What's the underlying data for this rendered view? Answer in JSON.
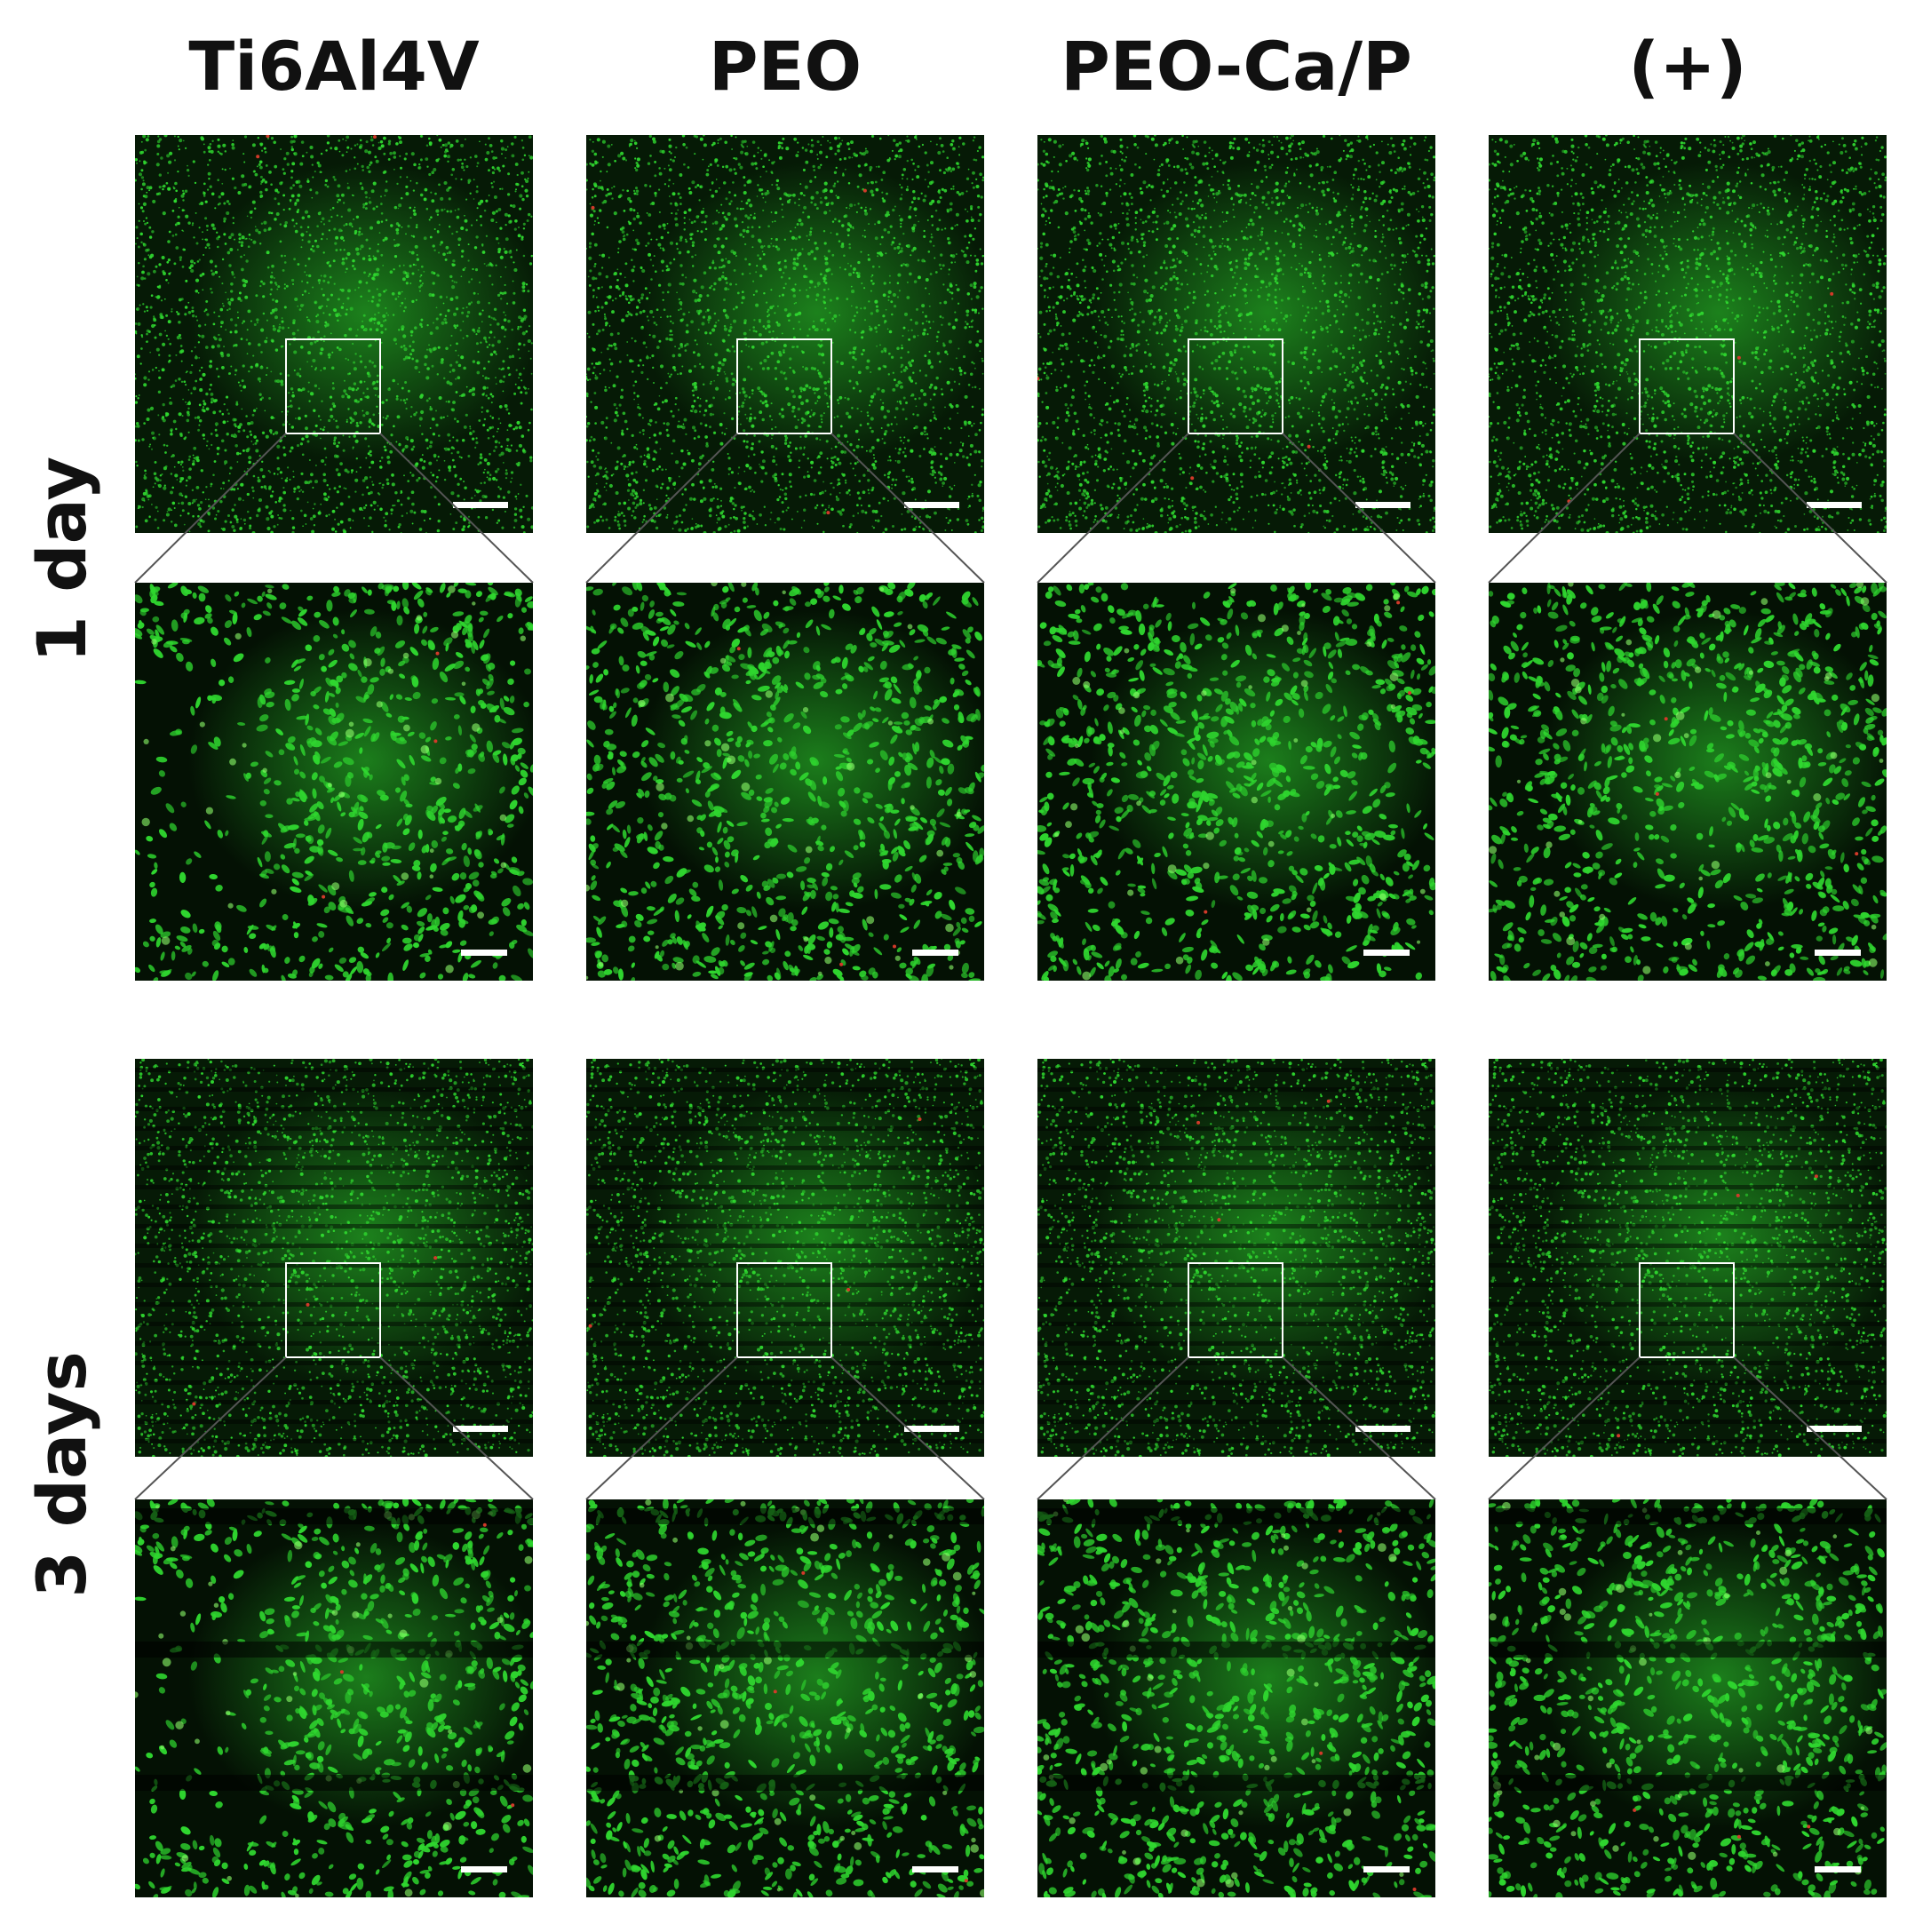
{
  "figure": {
    "columns": [
      {
        "id": "ti6al4v",
        "title": "Ti6Al4V"
      },
      {
        "id": "peo",
        "title": "PEO"
      },
      {
        "id": "peo-cap",
        "title": "PEO-Ca/P"
      },
      {
        "id": "positive-control",
        "title": "(+)"
      }
    ],
    "rows": [
      {
        "id": "day1",
        "label": "1 day"
      },
      {
        "id": "day3",
        "label": "3 days"
      }
    ],
    "colors": {
      "live_cells": "#2fd62f",
      "dead_cells": "#d23a2a",
      "background": "#000000",
      "inset_box": "#ffffff",
      "connector": "#555555",
      "scale_bar": "#ffffff"
    }
  }
}
